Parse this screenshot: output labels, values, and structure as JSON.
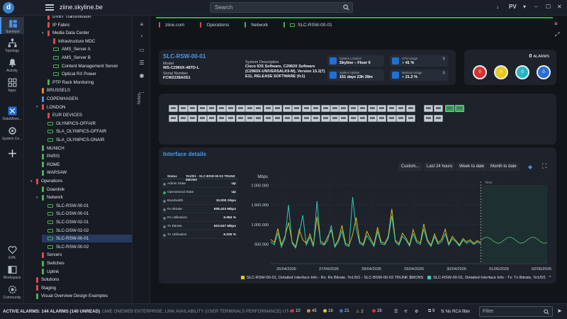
{
  "app": {
    "title": "ziine.skyline.be",
    "logo_letter": "d"
  },
  "topbar": {
    "search_placeholder": "Search",
    "user": "PV",
    "download_icon": "↓"
  },
  "rail": [
    {
      "label": "Surveyor",
      "icon": "surveyor-icon"
    },
    {
      "label": "Topology",
      "icon": "topology-icon"
    },
    {
      "label": "Activity",
      "icon": "activity-icon"
    },
    {
      "label": "Apps",
      "icon": "apps-icon"
    },
    {
      "label": "DataMiner...",
      "icon": "dataminer-icon"
    },
    {
      "label": "System Ce...",
      "icon": "system-center-icon"
    },
    {
      "label": "",
      "icon": "plus-icon"
    },
    {
      "label": "EPA",
      "icon": "heart-icon"
    },
    {
      "label": "Workspace",
      "icon": "workspace-icon"
    },
    {
      "label": "Community",
      "icon": "community-icon"
    }
  ],
  "tree": [
    {
      "label": "DVBT Transmission",
      "color": "#e04848",
      "indent": 3,
      "chev": false,
      "type": "view"
    },
    {
      "label": "IP Fabric",
      "color": "#e04848",
      "indent": 3,
      "chev": false,
      "type": "view"
    },
    {
      "label": "Media Data Center",
      "color": "#e04848",
      "indent": 3,
      "chev": true,
      "type": "view"
    },
    {
      "label": "Infrastructure MDC",
      "color": "#e04848",
      "indent": 4,
      "chev": false,
      "type": "view"
    },
    {
      "label": "AMS_Server A",
      "color": "#4caf50",
      "indent": 4,
      "chev": false,
      "type": "elem"
    },
    {
      "label": "AMS_Server B",
      "color": "#4caf50",
      "indent": 4,
      "chev": false,
      "type": "elem"
    },
    {
      "label": "Content Management Server",
      "color": "#4caf50",
      "indent": 4,
      "chev": false,
      "type": "elem"
    },
    {
      "label": "Optical RX Power",
      "color": "#4caf50",
      "indent": 4,
      "chev": false,
      "type": "elem"
    },
    {
      "label": "PTP Rack Monitoring",
      "color": "#4caf50",
      "indent": 3,
      "chev": false,
      "type": "view"
    },
    {
      "label": "BRUSSELS",
      "color": "#e8862c",
      "indent": 2,
      "chev": false,
      "type": "view"
    },
    {
      "label": "COPENHAGEN",
      "color": "#4a90e2",
      "indent": 2,
      "chev": false,
      "type": "view"
    },
    {
      "label": "LONDON",
      "color": "#e04848",
      "indent": 2,
      "chev": true,
      "type": "view"
    },
    {
      "label": "EUR DEVICES",
      "color": "#e04848",
      "indent": 3,
      "chev": false,
      "type": "view"
    },
    {
      "label": "OLYMPICS-OFFAIR",
      "color": "#4caf50",
      "indent": 3,
      "chev": false,
      "type": "elem"
    },
    {
      "label": "SLA_OLYMPICS-OFFAIR",
      "color": "#4caf50",
      "indent": 3,
      "chev": false,
      "type": "elem"
    },
    {
      "label": "SLA_OLYMPICS-ONAIR",
      "color": "#4caf50",
      "indent": 3,
      "chev": false,
      "type": "elem"
    },
    {
      "label": "MUNICH",
      "color": "#4caf50",
      "indent": 2,
      "chev": false,
      "type": "view"
    },
    {
      "label": "PARIS",
      "color": "#4caf50",
      "indent": 2,
      "chev": false,
      "type": "view"
    },
    {
      "label": "ROME",
      "color": "#4caf50",
      "indent": 2,
      "chev": false,
      "type": "view"
    },
    {
      "label": "WARSAW",
      "color": "#4caf50",
      "indent": 2,
      "chev": false,
      "type": "view"
    },
    {
      "label": "Operations",
      "color": "#e04848",
      "indent": 1,
      "chev": true,
      "type": "view"
    },
    {
      "label": "Downlink",
      "color": "#4caf50",
      "indent": 2,
      "chev": false,
      "type": "view"
    },
    {
      "label": "Network",
      "color": "#4caf50",
      "indent": 2,
      "chev": true,
      "type": "view"
    },
    {
      "label": "SLC-RSW-00-01",
      "color": "#4caf50",
      "indent": 3,
      "chev": false,
      "type": "elem"
    },
    {
      "label": "SLC-DSW-00-01",
      "color": "#4caf50",
      "indent": 3,
      "chev": false,
      "type": "elem"
    },
    {
      "label": "SLC-DSW-02-01",
      "color": "#4caf50",
      "indent": 3,
      "chev": false,
      "type": "elem"
    },
    {
      "label": "SLC-DSW-02-02",
      "color": "#4caf50",
      "indent": 3,
      "chev": false,
      "type": "elem"
    },
    {
      "label": "SLC-RSW-00-01",
      "color": "#4caf50",
      "indent": 3,
      "chev": false,
      "type": "elem",
      "selected": true
    },
    {
      "label": "SLC-RSW-00-02",
      "color": "#4caf50",
      "indent": 3,
      "chev": false,
      "type": "elem"
    },
    {
      "label": "Servers",
      "color": "#e04848",
      "indent": 2,
      "chev": false,
      "type": "view"
    },
    {
      "label": "Switches",
      "color": "#4caf50",
      "indent": 2,
      "chev": false,
      "type": "view"
    },
    {
      "label": "Uplink",
      "color": "#4caf50",
      "indent": 2,
      "chev": false,
      "type": "view"
    },
    {
      "label": "Solutions",
      "color": "#e04848",
      "indent": 1,
      "chev": false,
      "type": "view"
    },
    {
      "label": "Staging",
      "color": "#e04848",
      "indent": 1,
      "chev": false,
      "type": "view"
    },
    {
      "label": "Visual Overview Design Examples",
      "color": "#4caf50",
      "indent": 1,
      "chev": false,
      "type": "view"
    }
  ],
  "breadcrumb": [
    {
      "label": "ziine.com",
      "color": "#e04848"
    },
    {
      "label": "Operations",
      "color": "#e04848"
    },
    {
      "label": "Network",
      "color": "#4caf50"
    },
    {
      "label": "SLC-RSW-00-01",
      "color": "#4caf50"
    }
  ],
  "side_tabs": {
    "notes": "Notes"
  },
  "device": {
    "name": "SLC-RSW-00-01",
    "model_label": "Model",
    "model": "WS-C2960X-48TD-L",
    "serial_label": "Serial Number",
    "serial": "FCW2238A0S1",
    "desc_label": "System Description",
    "desc_lines": [
      "Cisco IOS Software, C2960X Software",
      "(C2960X-UNIVERSALK9-M), Version 15.2(7)",
      "E11, RELEASE SOFTWARE (fc1)"
    ],
    "location_label": "System Location",
    "location": "Skyline – Floor 0",
    "uptime_label": "System Uptime",
    "uptime": "151 days 23h 39m",
    "cpu_label": "CPU Usage",
    "cpu": "41 %",
    "mem_label": "Memory Usage",
    "mem": "21.2 %"
  },
  "alarms": {
    "count": "0",
    "label": "ALARMS",
    "buttons": [
      {
        "value": "0",
        "color": "#d93030",
        "name": "critical"
      },
      {
        "value": "0",
        "color": "#e8c81c",
        "name": "major"
      },
      {
        "value": "0",
        "color": "#27b5c4",
        "name": "minor"
      },
      {
        "value": "0",
        "color": "#2a6fd1",
        "name": "warning"
      }
    ]
  },
  "interface": {
    "title": "Interface details",
    "ranges": [
      "Custom...",
      "Last 24 hours",
      "Week to date",
      "Month to date"
    ],
    "table_header": [
      "Status",
      "Te1/0/1 - SLC-BSW-00-03 TRUNK $MONS"
    ],
    "rows": [
      {
        "k": "Admin State",
        "v": "Up",
        "dot": "grey"
      },
      {
        "k": "Operational State",
        "v": "Up",
        "dot": "green"
      },
      {
        "k": "Bandwidth",
        "v": "10.000 Gbps",
        "dot": "grey"
      },
      {
        "k": "Rx Bitrate",
        "v": "608.423 Mbps",
        "dot": "grey"
      },
      {
        "k": "Rx Utilization",
        "v": "6.084 %",
        "dot": "grey"
      },
      {
        "k": "Tx Bitrate",
        "v": "603.537 Mbps",
        "dot": "grey"
      },
      {
        "k": "Tx Utilization",
        "v": "6.035 %",
        "dot": "grey"
      }
    ]
  },
  "chart_data": {
    "type": "line",
    "ylabel": "Mbps",
    "yticks": [
      "2.000.000",
      "1.500.000",
      "1.000.000",
      "500.000"
    ],
    "y_tick_values": [
      2000,
      1500,
      1000,
      500
    ],
    "ylim": [
      0,
      2100
    ],
    "x_ticks": [
      "26/04/2026",
      "27/04/2026",
      "28/04/2026",
      "29/04/2026",
      "30/04/2026",
      "01/05/2026",
      "02/05/2026"
    ],
    "now_label": "Now",
    "series": [
      {
        "name": "SLC-RSW-00-01, Detailed Interface Info - Rx: Rx Bitrate, Te1/0/1 : SLC-BSW-00-03 TRUNK $MONS",
        "color": "#e8c81c",
        "values": [
          620,
          540,
          900,
          480,
          700,
          1050,
          560,
          430,
          880,
          610,
          520,
          760,
          470,
          1200,
          580,
          500,
          690,
          860,
          450,
          620,
          980,
          520,
          470,
          740,
          1180,
          560,
          500,
          830,
          640,
          480,
          930,
          560,
          520,
          700,
          1400,
          600,
          510,
          780,
          650,
          480,
          870,
          590,
          530,
          1020,
          620,
          470,
          760,
          540,
          620,
          880,
          500,
          700,
          590,
          480,
          640,
          560,
          610,
          520,
          590,
          540
        ]
      },
      {
        "name": "SLC-RSW-00-01, Detailed Interface Info - Tx: Tx Bitrate",
        "color": "#2fd1b6",
        "values": [
          560,
          480,
          780,
          420,
          640,
          1500,
          520,
          400,
          760,
          1240,
          480,
          680,
          430,
          1600,
          520,
          470,
          600,
          980,
          420,
          560,
          840,
          470,
          440,
          1700,
          900,
          520,
          460,
          720,
          580,
          440,
          820,
          510,
          480,
          640,
          1220,
          560,
          470,
          700,
          600,
          450,
          760,
          540,
          490,
          880,
          570,
          440,
          690,
          500,
          560,
          760,
          470,
          640,
          560,
          450,
          600,
          520,
          570,
          490,
          550,
          510
        ]
      }
    ],
    "legend": [
      {
        "label": "SLC-RSW-00-01, Detailed Interface Info - Rx: Rx Bitrate, Te1/0/1 - SLC-BSW-00-03 TRUNK $MONS",
        "color": "#e8c81c"
      },
      {
        "label": "SLC-RSW-00-01, Detailed Interface Info - Tx: Tx Bitrate, Te1/0/1 - SLC-BSW-00-03 TRUNK $MONS",
        "color": "#2fd1b6"
      }
    ]
  },
  "bottom": {
    "active_alarms": "ACTIVE ALARMS: 144 ALARMS (140 UNREAD)",
    "ticker": "OWE ONEWEB ENTERPRISE, LINK AVAILABILITY (USER TERMINALS PERFORMANCE) UT-0003 TERMINAL C...",
    "stats": [
      {
        "value": "10",
        "color": "#d93030"
      },
      {
        "value": "45",
        "color": "#e8862c"
      },
      {
        "value": "16",
        "color": "#e8c81c"
      },
      {
        "value": "21",
        "color": "#2a6fd1"
      },
      {
        "value": "2",
        "color": "#e8c81c"
      },
      {
        "value": "26",
        "color": "#d93030"
      }
    ],
    "count9": "9",
    "rca": "No RCA filter",
    "filter_placeholder": "Filter"
  }
}
